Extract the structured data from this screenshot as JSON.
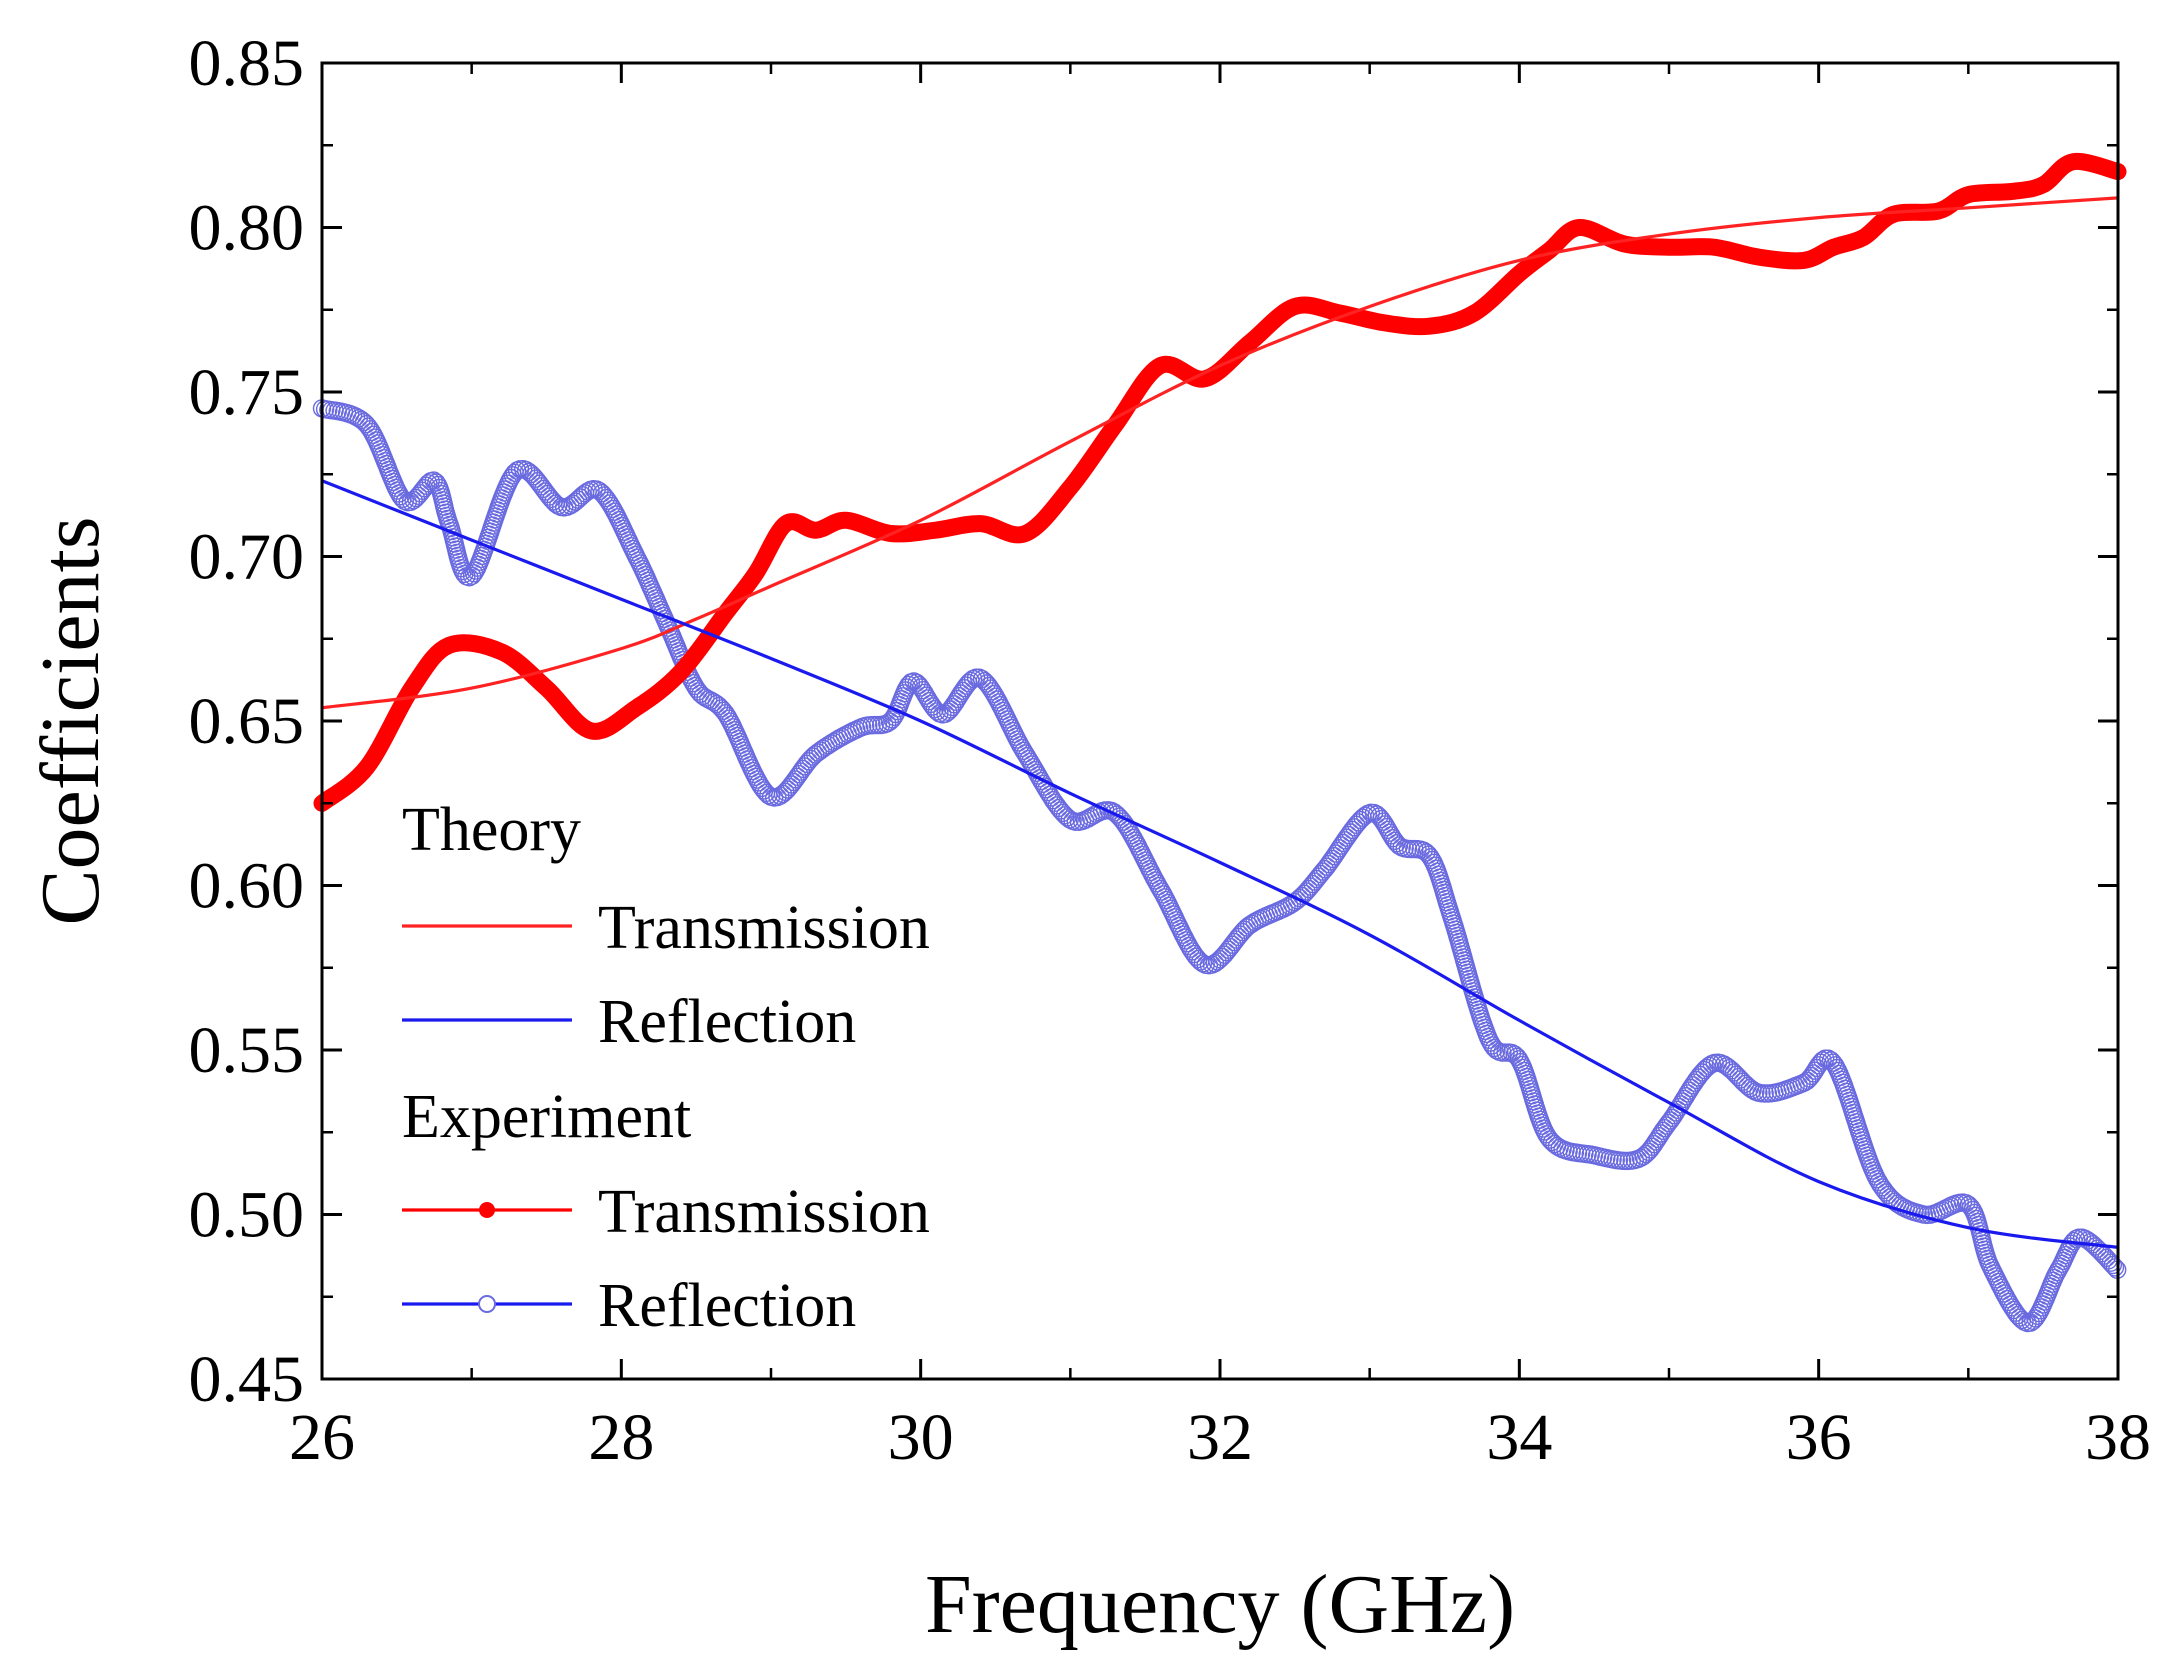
{
  "chart_data": {
    "type": "line",
    "xlabel": "Frequency (GHz)",
    "ylabel": "Coefficients",
    "xlim": [
      26,
      38
    ],
    "ylim": [
      0.45,
      0.85
    ],
    "x_ticks": [
      "26",
      "28",
      "30",
      "32",
      "34",
      "36",
      "38"
    ],
    "y_ticks": [
      "0.45",
      "0.50",
      "0.55",
      "0.60",
      "0.65",
      "0.70",
      "0.75",
      "0.80",
      "0.85"
    ],
    "grid": false,
    "legend_position": "lower-left",
    "legend": {
      "groups": [
        {
          "title": "Theory",
          "entries": [
            "Transmission",
            "Reflection"
          ]
        },
        {
          "title": "Experiment",
          "entries": [
            "Transmission",
            "Reflection"
          ]
        }
      ]
    },
    "series": [
      {
        "name": "Transmission",
        "group": "Theory",
        "color": "#ff2222",
        "style": "thin-line",
        "x": [
          26,
          27,
          28,
          28.5,
          29,
          30,
          31,
          32,
          33,
          34,
          35,
          36,
          37,
          38
        ],
        "y": [
          0.654,
          0.66,
          0.672,
          0.681,
          0.691,
          0.711,
          0.735,
          0.758,
          0.776,
          0.79,
          0.798,
          0.803,
          0.806,
          0.809
        ]
      },
      {
        "name": "Reflection",
        "group": "Theory",
        "color": "#1a1aee",
        "style": "thin-line",
        "x": [
          26,
          27,
          28,
          29,
          30,
          31,
          32,
          33,
          34,
          35,
          36,
          37,
          38
        ],
        "y": [
          0.723,
          0.705,
          0.687,
          0.669,
          0.65,
          0.628,
          0.607,
          0.585,
          0.559,
          0.534,
          0.51,
          0.496,
          0.49
        ]
      },
      {
        "name": "Transmission",
        "group": "Experiment",
        "color": "#ff0000",
        "style": "thick-filled",
        "x": [
          26,
          26.3,
          26.6,
          26.85,
          27.2,
          27.5,
          27.8,
          28.1,
          28.4,
          28.7,
          28.9,
          29.1,
          29.3,
          29.5,
          29.8,
          30.1,
          30.4,
          30.7,
          31.0,
          31.3,
          31.6,
          31.9,
          32.2,
          32.5,
          32.8,
          33.1,
          33.4,
          33.7,
          34.0,
          34.2,
          34.4,
          34.7,
          35.0,
          35.3,
          35.6,
          35.9,
          36.1,
          36.3,
          36.5,
          36.8,
          37.0,
          37.3,
          37.5,
          37.7,
          38.0
        ],
        "y": [
          0.625,
          0.636,
          0.66,
          0.673,
          0.671,
          0.66,
          0.647,
          0.654,
          0.665,
          0.683,
          0.695,
          0.71,
          0.708,
          0.711,
          0.707,
          0.708,
          0.71,
          0.707,
          0.721,
          0.74,
          0.758,
          0.754,
          0.765,
          0.776,
          0.774,
          0.771,
          0.77,
          0.774,
          0.786,
          0.793,
          0.8,
          0.795,
          0.794,
          0.794,
          0.791,
          0.79,
          0.794,
          0.797,
          0.804,
          0.805,
          0.81,
          0.811,
          0.813,
          0.82,
          0.817
        ]
      },
      {
        "name": "Reflection",
        "group": "Experiment",
        "color": "#6a6ae0",
        "style": "open-circles",
        "x": [
          26,
          26.3,
          26.55,
          26.75,
          26.85,
          27.0,
          27.3,
          27.6,
          27.85,
          28.1,
          28.3,
          28.5,
          28.7,
          29.0,
          29.3,
          29.6,
          29.8,
          29.95,
          30.15,
          30.4,
          30.7,
          31.0,
          31.3,
          31.6,
          31.9,
          32.2,
          32.5,
          32.7,
          33.0,
          33.2,
          33.4,
          33.55,
          33.8,
          34.0,
          34.2,
          34.5,
          34.8,
          35.0,
          35.3,
          35.6,
          35.9,
          36.1,
          36.4,
          36.7,
          37.0,
          37.15,
          37.4,
          37.6,
          37.75,
          38.0
        ],
        "y": [
          0.745,
          0.74,
          0.717,
          0.723,
          0.71,
          0.694,
          0.726,
          0.715,
          0.72,
          0.7,
          0.68,
          0.66,
          0.652,
          0.627,
          0.64,
          0.648,
          0.65,
          0.662,
          0.652,
          0.663,
          0.64,
          0.62,
          0.622,
          0.599,
          0.576,
          0.588,
          0.595,
          0.605,
          0.622,
          0.612,
          0.609,
          0.59,
          0.553,
          0.547,
          0.523,
          0.518,
          0.517,
          0.528,
          0.546,
          0.537,
          0.54,
          0.546,
          0.51,
          0.5,
          0.503,
          0.484,
          0.467,
          0.483,
          0.493,
          0.483
        ]
      }
    ]
  }
}
